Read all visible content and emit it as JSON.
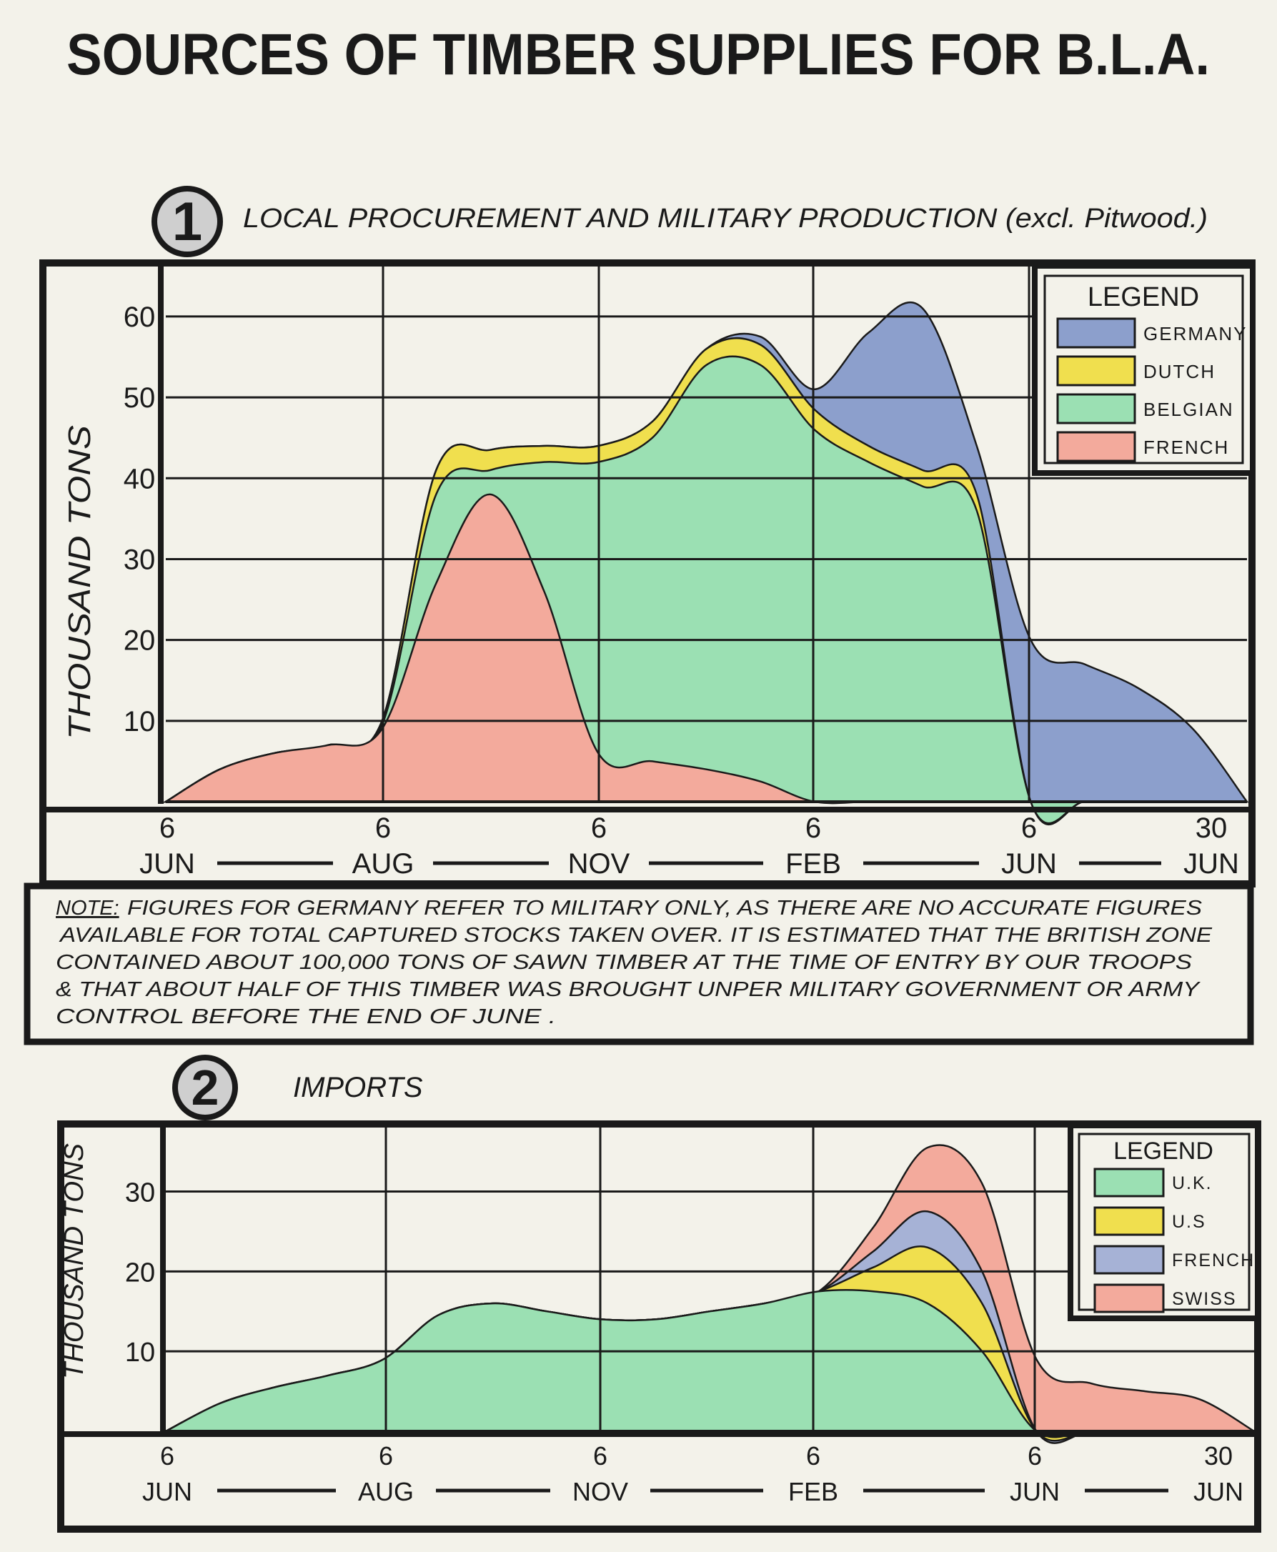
{
  "title": "SOURCES OF TIMBER SUPPLIES FOR B.L.A.",
  "note": [
    "NOTE:",
    " FIGURES FOR GERMANY REFER TO MILITARY ONLY, AS THERE ARE NO ACCURATE FIGURES",
    "AVAILABLE FOR TOTAL CAPTURED STOCKS TAKEN OVER.  IT IS ESTIMATED THAT THE BRITISH ZONE",
    "CONTAINED ABOUT  100,000 TONS OF SAWN TIMBER  AT THE TIME OF ENTRY BY OUR TROOPS",
    "& THAT ABOUT HALF OF THIS TIMBER WAS BROUGHT UNPER MILITARY GOVERNMENT OR ARMY",
    "CONTROL BEFORE  THE END OF JUNE ."
  ],
  "colors": {
    "background": "#f3f2ea",
    "frame": "#1a1a1a",
    "germany": "#8c9fcc",
    "dutch": "#f0df4e",
    "belgian": "#9be0b3",
    "french": "#f3aa9c",
    "uk": "#9be0b3",
    "us": "#f0df4e",
    "french_imports": "#a6b2d6",
    "swiss": "#f3aa9c"
  },
  "chart_data": [
    {
      "number": "1",
      "title": "LOCAL PROCUREMENT AND MILITARY PRODUCTION (excl. Pitwood.)",
      "type": "area",
      "stacked": true,
      "ylabel": "THOUSAND TONS",
      "ylim": [
        0,
        66
      ],
      "yticks": [
        10,
        20,
        30,
        40,
        50,
        60
      ],
      "grid": true,
      "x_ticks": [
        {
          "day": "6",
          "month": "JUN"
        },
        {
          "day": "6",
          "month": "AUG"
        },
        {
          "day": "6",
          "month": "NOV"
        },
        {
          "day": "6",
          "month": "FEB"
        },
        {
          "day": "6",
          "month": "JUN"
        },
        {
          "day": "30",
          "month": "JUN"
        }
      ],
      "legend_title": "LEGEND",
      "legend_position": "top-right",
      "legend": [
        "GERMANY",
        "DUTCH",
        "BELGIAN",
        "FRENCH"
      ],
      "x_points": [
        0,
        0.25,
        0.5,
        0.75,
        1,
        1.25,
        1.5,
        1.75,
        2,
        2.25,
        2.5,
        2.75,
        3,
        3.25,
        3.5,
        3.75,
        4,
        4.25,
        4.5,
        4.75,
        5
      ],
      "series": [
        {
          "name": "FRENCH",
          "color_key": "french",
          "values": [
            0,
            4,
            6,
            7,
            9,
            27,
            38,
            26,
            6,
            5,
            4,
            2.5,
            0,
            0,
            0,
            0,
            0,
            0,
            0,
            0,
            0
          ]
        },
        {
          "name": "BELGIAN",
          "color_key": "belgian",
          "values": [
            0,
            0,
            0,
            0,
            0.5,
            11,
            3,
            16,
            36,
            40,
            50,
            51.5,
            46,
            42,
            39,
            36,
            0,
            0,
            0,
            0,
            0
          ]
        },
        {
          "name": "DUTCH",
          "color_key": "dutch",
          "values": [
            0,
            0,
            0,
            0,
            0.5,
            3,
            2.5,
            2,
            2,
            2,
            2,
            2.5,
            2.5,
            2,
            2,
            2,
            0,
            0,
            0,
            0,
            0
          ]
        },
        {
          "name": "GERMANY",
          "color_key": "germany",
          "values": [
            0,
            0,
            0,
            0,
            0,
            0,
            0,
            0,
            0,
            0,
            0,
            1,
            2.5,
            14,
            20,
            6,
            20,
            17,
            14,
            9,
            0
          ]
        }
      ]
    },
    {
      "number": "2",
      "title": "IMPORTS",
      "type": "area",
      "stacked": true,
      "ylabel": "THOUSAND TONS",
      "ylim": [
        0,
        38
      ],
      "yticks": [
        10,
        20,
        30
      ],
      "grid": true,
      "x_ticks": [
        {
          "day": "6",
          "month": "JUN"
        },
        {
          "day": "6",
          "month": "AUG"
        },
        {
          "day": "6",
          "month": "NOV"
        },
        {
          "day": "6",
          "month": "FEB"
        },
        {
          "day": "6",
          "month": "JUN"
        },
        {
          "day": "30",
          "month": "JUN"
        }
      ],
      "legend_title": "LEGEND",
      "legend_position": "top-right",
      "legend": [
        "U.K.",
        "U.S",
        "FRENCH",
        "SWISS"
      ],
      "x_points": [
        0,
        0.25,
        0.5,
        0.75,
        1,
        1.25,
        1.5,
        1.75,
        2,
        2.25,
        2.5,
        2.75,
        3,
        3.25,
        3.5,
        3.75,
        4,
        4.25,
        4.5,
        4.75,
        5
      ],
      "series": [
        {
          "name": "U.K.",
          "color_key": "uk",
          "values": [
            0,
            3.5,
            5.5,
            7,
            9,
            14.5,
            16,
            15,
            14,
            14,
            15,
            16,
            17.5,
            17.5,
            16,
            10,
            0,
            0,
            0,
            0,
            0
          ]
        },
        {
          "name": "U.S",
          "color_key": "us",
          "values": [
            0,
            0,
            0,
            0,
            0,
            0,
            0,
            0,
            0,
            0,
            0,
            0,
            0,
            3,
            7,
            6,
            0,
            0,
            0,
            0,
            0
          ]
        },
        {
          "name": "FRENCH",
          "color_key": "french_imports",
          "values": [
            0,
            0,
            0,
            0,
            0,
            0,
            0,
            0,
            0,
            0,
            0,
            0,
            0,
            2,
            4.5,
            4,
            0,
            0,
            0,
            0,
            0
          ]
        },
        {
          "name": "SWISS",
          "color_key": "swiss",
          "values": [
            0,
            0,
            0,
            0,
            0,
            0,
            0,
            0,
            0,
            0,
            0,
            0,
            0,
            3,
            8,
            11,
            9,
            6,
            5,
            4,
            0
          ]
        }
      ]
    }
  ]
}
